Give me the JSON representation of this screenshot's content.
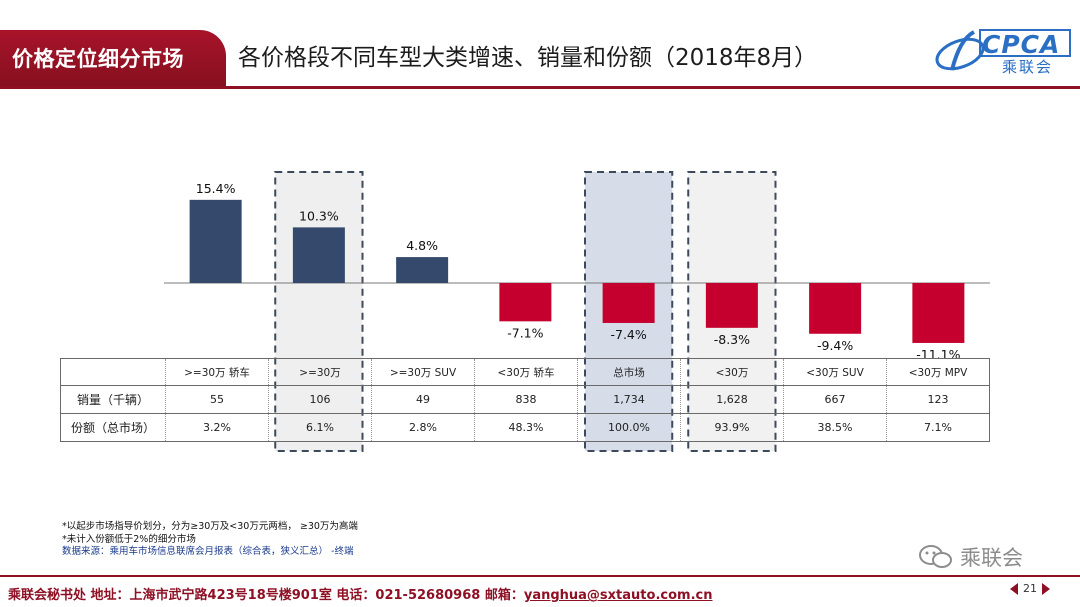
{
  "header": {
    "section": "价格定位细分市场",
    "title": "各价格段不同车型大类增速、销量和份额（2018年8月）",
    "logo_text": "CPCA",
    "logo_sub": "乘联会"
  },
  "chart_data": {
    "type": "bar",
    "categories": [
      ">=30万 轿车",
      ">=30万",
      ">=30万 SUV",
      "<30万 轿车",
      "总市场",
      "<30万",
      "<30万 SUV",
      "<30万 MPV"
    ],
    "values": [
      15.4,
      10.3,
      4.8,
      -7.1,
      -7.4,
      -8.3,
      -9.4,
      -11.1
    ],
    "value_labels": [
      "15.4%",
      "10.3%",
      "4.8%",
      "-7.1%",
      "-7.4%",
      "-8.3%",
      "-9.4%",
      "-11.1%"
    ],
    "positive_color": "#34496b",
    "negative_color": "#c5002f",
    "highlight_columns": [
      1,
      4,
      5
    ],
    "highlight_fill": [
      "#efefef",
      "#d6dde9",
      "#f1f1f1"
    ],
    "rows": [
      {
        "label": "销量（千辆）",
        "values": [
          "55",
          "106",
          "49",
          "838",
          "1,734",
          "1,628",
          "667",
          "123"
        ]
      },
      {
        "label": "份额（总市场）",
        "values": [
          "3.2%",
          "6.1%",
          "2.8%",
          "48.3%",
          "100.0%",
          "93.9%",
          "38.5%",
          "7.1%"
        ]
      }
    ]
  },
  "footnotes": {
    "line1": "*以起步市场指导价划分，分为≥30万及<30万元两档，  ≥30万为高端",
    "line2": "*未计入份额低于2%的细分市场",
    "source": "数据来源：乘用车市场信息联席会月报表（综合表，狭义汇总）  -终端"
  },
  "watermark": "乘联会",
  "footer": {
    "text": "乘联会秘书处   地址：上海市武宁路423号18号楼901室  电话：021-52680968   邮箱：",
    "email": "yanghua@sxtauto.com.cn"
  },
  "page_number": "21"
}
